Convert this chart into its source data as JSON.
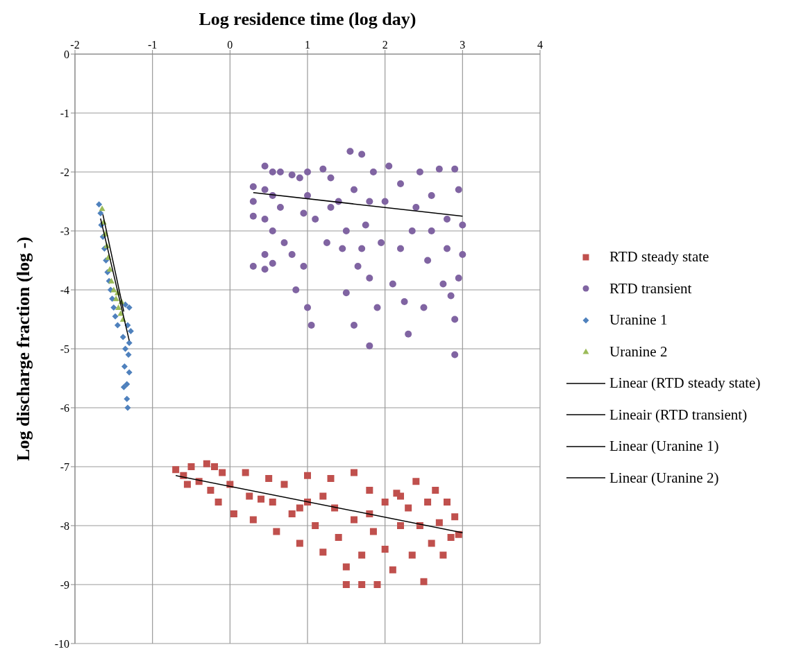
{
  "chart_data": {
    "type": "scatter",
    "xlabel": "Log residence time (log day)",
    "ylabel": "Log discharge fraction (log -)",
    "xlim": [
      -2,
      4
    ],
    "xticks": [
      -2,
      -1,
      0,
      1,
      2,
      3,
      4
    ],
    "ylim": [
      -10,
      0
    ],
    "yticks": [
      -10,
      -9,
      -8,
      -7,
      -6,
      -5,
      -4,
      -3,
      -2,
      -1,
      0
    ],
    "grid": true,
    "legend": "right",
    "series": [
      {
        "name": "RTD steady state",
        "type": "scatter",
        "marker": "square",
        "color": "#c0504d",
        "x": [
          -0.7,
          -0.6,
          -0.5,
          -0.55,
          -0.4,
          -0.3,
          -0.2,
          -0.25,
          -0.15,
          -0.1,
          0.0,
          0.05,
          0.2,
          0.25,
          0.3,
          0.5,
          0.55,
          0.6,
          0.7,
          0.8,
          0.9,
          1.0,
          1.0,
          1.1,
          1.2,
          1.3,
          1.35,
          1.4,
          1.5,
          1.5,
          1.6,
          1.6,
          1.7,
          1.7,
          1.8,
          1.85,
          1.9,
          2.0,
          2.0,
          2.1,
          2.15,
          2.2,
          2.3,
          2.35,
          2.4,
          2.45,
          2.5,
          2.55,
          2.6,
          2.65,
          2.7,
          2.75,
          2.8,
          2.85,
          2.9,
          2.95,
          1.2,
          0.4,
          1.8,
          2.2,
          0.9
        ],
        "values": [
          -7.05,
          -7.15,
          -7.0,
          -7.3,
          -7.25,
          -6.95,
          -7.0,
          -7.4,
          -7.6,
          -7.1,
          -7.3,
          -7.8,
          -7.1,
          -7.5,
          -7.9,
          -7.2,
          -7.6,
          -8.1,
          -7.3,
          -7.8,
          -8.3,
          -7.15,
          -7.6,
          -8.0,
          -8.45,
          -7.2,
          -7.7,
          -8.2,
          -8.7,
          -9.0,
          -7.1,
          -7.9,
          -8.5,
          -9.0,
          -7.4,
          -8.1,
          -9.0,
          -7.6,
          -8.4,
          -8.75,
          -7.45,
          -8.0,
          -7.7,
          -8.5,
          -7.25,
          -8.0,
          -8.95,
          -7.6,
          -8.3,
          -7.4,
          -7.95,
          -8.5,
          -7.6,
          -8.2,
          -7.85,
          -8.15,
          -7.5,
          -7.55,
          -7.8,
          -7.5,
          -7.7
        ]
      },
      {
        "name": "RTD transient",
        "type": "scatter",
        "marker": "circle",
        "color": "#8064a2",
        "x": [
          0.3,
          0.3,
          0.3,
          0.3,
          0.45,
          0.45,
          0.45,
          0.45,
          0.45,
          0.55,
          0.55,
          0.55,
          0.55,
          0.65,
          0.65,
          0.7,
          0.8,
          0.8,
          0.85,
          0.9,
          0.95,
          0.95,
          1.0,
          1.0,
          1.05,
          1.1,
          1.2,
          1.25,
          1.3,
          1.4,
          1.45,
          1.5,
          1.55,
          1.6,
          1.6,
          1.65,
          1.7,
          1.75,
          1.8,
          1.8,
          1.85,
          1.9,
          1.95,
          2.0,
          2.05,
          2.1,
          2.2,
          2.25,
          2.3,
          2.35,
          2.45,
          2.5,
          2.55,
          2.6,
          2.7,
          2.75,
          2.8,
          2.85,
          2.9,
          2.9,
          2.9,
          2.95,
          3.0,
          3.0,
          2.95,
          1.3,
          1.5,
          2.2,
          2.6,
          1.8,
          2.4,
          1.0,
          1.7,
          2.8
        ],
        "values": [
          -2.25,
          -2.5,
          -2.75,
          -3.6,
          -1.9,
          -2.3,
          -2.8,
          -3.4,
          -3.65,
          -2.0,
          -2.4,
          -3.0,
          -3.55,
          -2.0,
          -2.6,
          -3.2,
          -2.05,
          -3.4,
          -4.0,
          -2.1,
          -2.7,
          -3.6,
          -2.0,
          -4.3,
          -4.6,
          -2.8,
          -1.95,
          -3.2,
          -2.1,
          -2.5,
          -3.3,
          -4.05,
          -1.65,
          -2.3,
          -4.6,
          -3.6,
          -1.7,
          -2.9,
          -3.8,
          -4.95,
          -2.0,
          -4.3,
          -3.2,
          -2.5,
          -1.9,
          -3.9,
          -2.2,
          -4.2,
          -4.75,
          -3.0,
          -2.0,
          -4.3,
          -3.5,
          -2.4,
          -1.95,
          -3.9,
          -2.8,
          -4.1,
          -1.95,
          -4.5,
          -5.1,
          -2.3,
          -2.9,
          -3.4,
          -3.8,
          -2.6,
          -3.0,
          -3.3,
          -3.0,
          -2.5,
          -2.6,
          -2.4,
          -3.3,
          -3.3
        ]
      },
      {
        "name": "Uranine 1",
        "type": "scatter",
        "marker": "diamond",
        "color": "#4f81bd",
        "x": [
          -1.69,
          -1.67,
          -1.66,
          -1.64,
          -1.62,
          -1.6,
          -1.58,
          -1.56,
          -1.54,
          -1.52,
          -1.5,
          -1.48,
          -1.4,
          -1.35,
          -1.3,
          -1.32,
          -1.38,
          -1.3,
          -1.35,
          -1.31,
          -1.36,
          -1.3,
          -1.33,
          -1.37,
          -1.33,
          -1.32,
          -1.42,
          -1.45,
          -1.28
        ],
        "values": [
          -2.55,
          -2.7,
          -2.9,
          -3.1,
          -3.3,
          -3.5,
          -3.7,
          -3.85,
          -4.0,
          -4.15,
          -4.3,
          -4.45,
          null,
          -4.25,
          -4.3,
          -4.6,
          -4.8,
          -4.9,
          -5.0,
          -5.1,
          -5.3,
          -5.4,
          -5.6,
          -5.65,
          -5.85,
          -6.0,
          null,
          -4.6,
          -4.7
        ]
      },
      {
        "name": "Uranine 2",
        "type": "scatter",
        "marker": "triangle",
        "color": "#9bbb59",
        "x": [
          -1.65,
          -1.63,
          -1.61,
          -1.59,
          -1.57,
          -1.55,
          -1.53,
          -1.5,
          -1.47,
          -1.44,
          -1.41,
          -1.38,
          -1.4,
          -1.45
        ],
        "values": [
          -2.62,
          -2.85,
          -3.05,
          -3.25,
          -3.45,
          -3.65,
          -3.85,
          -4.0,
          -4.15,
          -4.3,
          -4.4,
          -4.5,
          -4.2,
          -4.05
        ]
      },
      {
        "name": "Linear (RTD steady state)",
        "type": "line",
        "line_style": "solid",
        "color": "#000000",
        "x": [
          -0.7,
          3.0
        ],
        "values": [
          -7.15,
          -8.12
        ]
      },
      {
        "name": "Lineair  (RTD transient)",
        "type": "line",
        "line_style": "solid",
        "color": "#000000",
        "x": [
          0.3,
          3.0
        ],
        "values": [
          -2.35,
          -2.75
        ]
      },
      {
        "name": "Linear (Uranine 1)",
        "type": "line",
        "line_style": "solid",
        "color": "#000000",
        "x": [
          -1.67,
          -1.3
        ],
        "values": [
          -2.79,
          -4.86
        ]
      },
      {
        "name": "Linear (Uranine 2)",
        "type": "line",
        "line_style": "solid",
        "color": "#000000",
        "x": [
          -1.64,
          -1.37
        ],
        "values": [
          -2.72,
          -4.37
        ]
      }
    ]
  }
}
